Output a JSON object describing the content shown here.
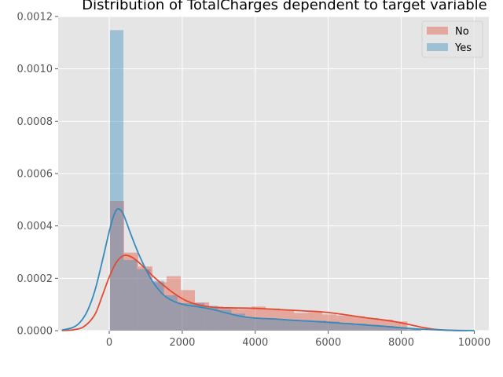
{
  "chart_data": {
    "type": "histogram",
    "title": "Distribution of TotalCharges dependent to target variable",
    "xlabel": "",
    "ylabel": "",
    "xlim": [
      -1400,
      10400
    ],
    "ylim": [
      0,
      0.0012
    ],
    "x_ticks": [
      0,
      2000,
      4000,
      6000,
      8000,
      10000
    ],
    "x_tick_labels": [
      "0",
      "2000",
      "4000",
      "6000",
      "8000",
      "10000"
    ],
    "y_ticks": [
      0,
      0.0002,
      0.0004,
      0.0006,
      0.0008,
      0.001,
      0.0012
    ],
    "y_tick_labels": [
      "0.0000",
      "0.0002",
      "0.0004",
      "0.0006",
      "0.0008",
      "0.0010",
      "0.0012"
    ],
    "grid": true,
    "style": "ggplot",
    "legend_position": "top-right",
    "series": [
      {
        "name": "No",
        "color": "#e24a33",
        "bin_edges": [
          18.8,
          406.8,
          794.8,
          1182.8,
          1570.8,
          1958.8,
          2346.8,
          2734.8,
          3122.8,
          3510.8,
          3898.8,
          4286.8,
          4674.8,
          5062.8,
          5450.8,
          5838.8,
          6226.8,
          6614.8,
          7002.8,
          7390.8,
          7778.8,
          8166.8,
          8554.8
        ],
        "density": [
          0.000495,
          0.000298,
          0.000245,
          0.000185,
          0.000208,
          0.000155,
          0.000108,
          9.2e-05,
          8.8e-05,
          8.2e-05,
          9.2e-05,
          8.5e-05,
          8e-05,
          6.8e-05,
          7e-05,
          6.2e-05,
          5.8e-05,
          5.5e-05,
          4.8e-05,
          4.2e-05,
          3.5e-05,
          5e-06
        ],
        "kde": {
          "x": [
            -1300,
            -1000,
            -700,
            -400,
            -200,
            0,
            200,
            400,
            600,
            800,
            1000,
            1200,
            1500,
            1800,
            2100,
            2400,
            2700,
            3000,
            3400,
            3800,
            4200,
            4600,
            5000,
            5400,
            5800,
            6200,
            6600,
            7000,
            7400,
            7800,
            8200,
            8600,
            9000,
            9400,
            9800
          ],
          "y": [
            5e-07,
            3e-06,
            1.5e-05,
            6e-05,
            0.00013,
            0.000205,
            0.000262,
            0.000287,
            0.000282,
            0.000262,
            0.000235,
            0.000208,
            0.000172,
            0.00014,
            0.000115,
            0.0001,
            9.2e-05,
            8.8e-05,
            8.7e-05,
            8.6e-05,
            8.4e-05,
            8.1e-05,
            7.8e-05,
            7.5e-05,
            7.2e-05,
            6.6e-05,
            5.8e-05,
            5e-05,
            4.3e-05,
            3.5e-05,
            2.4e-05,
            1.2e-05,
            4e-06,
            1e-06,
            2e-07
          ]
        }
      },
      {
        "name": "Yes",
        "color": "#348abd",
        "bin_edges": [
          18.8,
          388.8,
          758.8,
          1128.8,
          1498.8,
          1868.8,
          2238.8,
          2608.8,
          2978.8,
          3348.8,
          3718.8,
          4088.8,
          4458.8,
          4828.8,
          5198.8,
          5568.8,
          5938.8,
          6308.8,
          6678.8,
          7048.8,
          7418.8,
          7788.8,
          8158.8,
          8528.8
        ],
        "density": [
          0.001148,
          0.00027,
          0.000235,
          0.00019,
          0.000135,
          0.000105,
          0.000105,
          9.5e-05,
          8e-05,
          6.5e-05,
          5e-05,
          4.8e-05,
          4.5e-05,
          4.2e-05,
          4e-05,
          3.8e-05,
          3.5e-05,
          3e-05,
          2.7e-05,
          2.2e-05,
          1.8e-05,
          1.2e-05,
          5e-06
        ],
        "kde": {
          "x": [
            -1300,
            -1000,
            -800,
            -600,
            -400,
            -200,
            0,
            100,
            200,
            300,
            400,
            600,
            800,
            1000,
            1200,
            1500,
            1800,
            2100,
            2400,
            2800,
            3200,
            3600,
            4000,
            4500,
            5000,
            5500,
            6000,
            6500,
            7000,
            7500,
            8000,
            8500,
            9000,
            9500,
            10000
          ],
          "y": [
            2e-06,
            1.2e-05,
            3.2e-05,
            7.5e-05,
            0.00015,
            0.00026,
            0.00038,
            0.00043,
            0.000462,
            0.000462,
            0.00044,
            0.000365,
            0.000295,
            0.000235,
            0.000185,
            0.000135,
            0.00011,
            9.8e-05,
            9.2e-05,
            8.2e-05,
            6.8e-05,
            5.5e-05,
            4.8e-05,
            4.5e-05,
            4e-05,
            3.6e-05,
            3.2e-05,
            2.7e-05,
            2.2e-05,
            1.7e-05,
            1.1e-05,
            6e-06,
            3e-06,
            1e-06,
            3e-07
          ]
        }
      }
    ]
  }
}
